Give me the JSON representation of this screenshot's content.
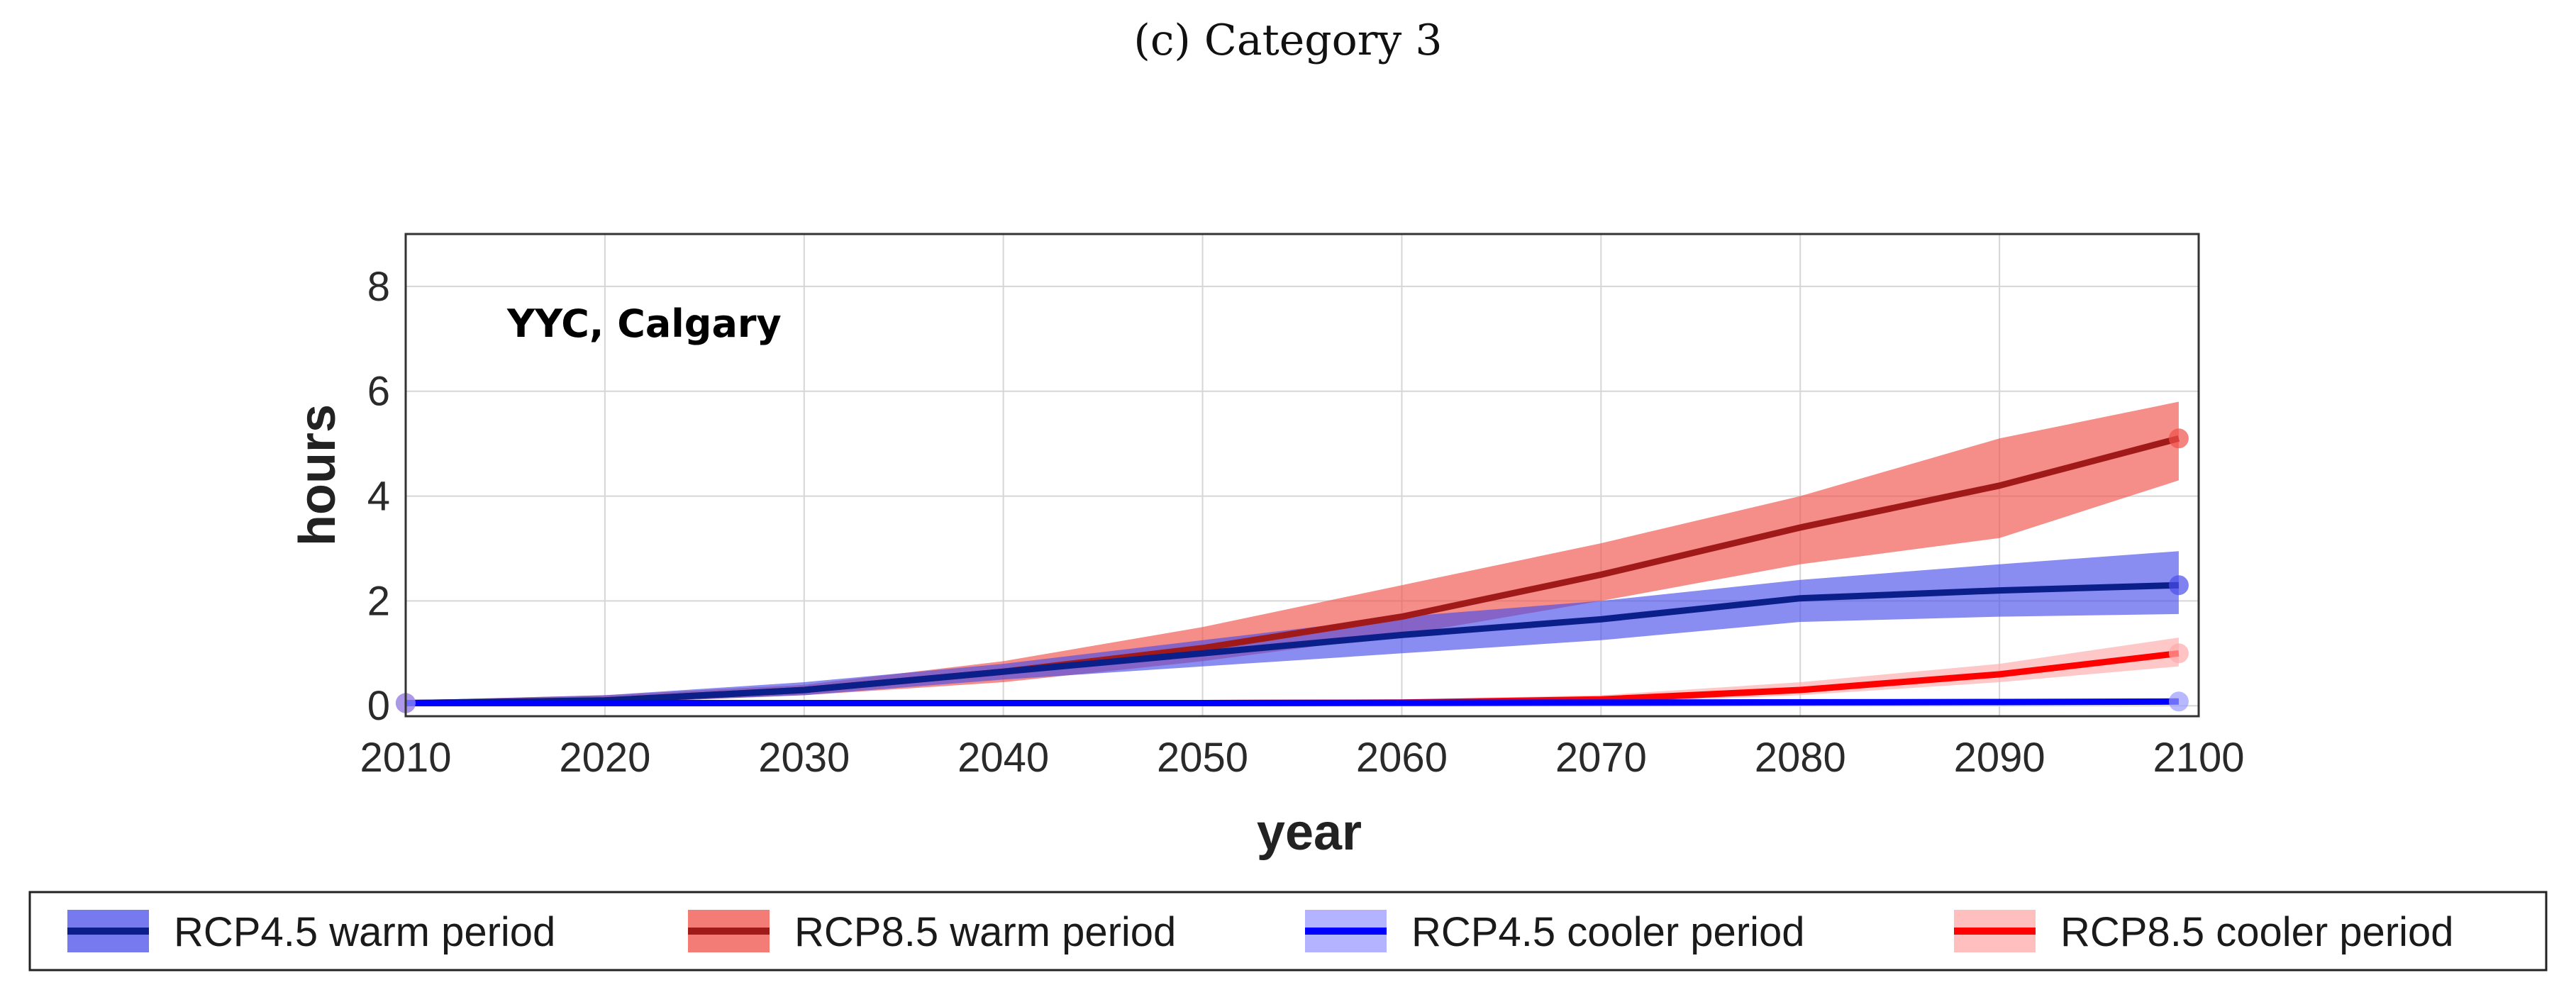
{
  "caption": "(c) Category 3",
  "chart_data": {
    "type": "line",
    "title": "",
    "annotation": "YYC, Calgary",
    "xlabel": "year",
    "ylabel": "hours",
    "xlim": [
      2010,
      2100
    ],
    "ylim": [
      -0.2,
      9
    ],
    "xticks": [
      2010,
      2020,
      2030,
      2040,
      2050,
      2060,
      2070,
      2080,
      2090,
      2100
    ],
    "yticks": [
      0,
      2,
      4,
      6,
      8
    ],
    "grid": true,
    "legend_position": "bottom",
    "series": [
      {
        "name": "RCP8.5 warm period",
        "line_color": "#a01a1a",
        "band_color": "#f0504a",
        "x": [
          2010,
          2020,
          2030,
          2040,
          2050,
          2060,
          2070,
          2080,
          2090,
          2099
        ],
        "values": [
          0.05,
          0.1,
          0.3,
          0.65,
          1.1,
          1.7,
          2.5,
          3.4,
          4.2,
          5.1
        ],
        "lower": [
          0.0,
          0.05,
          0.2,
          0.45,
          0.85,
          1.35,
          2.0,
          2.7,
          3.2,
          4.3
        ],
        "upper": [
          0.1,
          0.2,
          0.4,
          0.85,
          1.5,
          2.3,
          3.1,
          4.0,
          5.1,
          5.8
        ]
      },
      {
        "name": "RCP4.5 warm period",
        "line_color": "#0b1f8a",
        "band_color": "#4a4ee8",
        "x": [
          2010,
          2020,
          2030,
          2040,
          2050,
          2060,
          2070,
          2080,
          2090,
          2099
        ],
        "values": [
          0.05,
          0.1,
          0.3,
          0.65,
          1.0,
          1.35,
          1.65,
          2.05,
          2.2,
          2.3
        ],
        "lower": [
          0.0,
          0.05,
          0.2,
          0.5,
          0.75,
          1.0,
          1.25,
          1.6,
          1.7,
          1.75
        ],
        "upper": [
          0.1,
          0.2,
          0.45,
          0.8,
          1.25,
          1.7,
          2.0,
          2.4,
          2.7,
          2.95
        ]
      },
      {
        "name": "RCP8.5 cooler period",
        "line_color": "#ff0000",
        "band_color": "#ffaaaa",
        "x": [
          2010,
          2030,
          2050,
          2060,
          2070,
          2080,
          2090,
          2099
        ],
        "values": [
          0.05,
          0.05,
          0.05,
          0.06,
          0.12,
          0.3,
          0.6,
          1.0
        ],
        "lower": [
          0.0,
          0.0,
          0.0,
          0.02,
          0.05,
          0.2,
          0.45,
          0.75
        ],
        "upper": [
          0.1,
          0.1,
          0.1,
          0.12,
          0.2,
          0.45,
          0.8,
          1.3
        ]
      },
      {
        "name": "RCP4.5 cooler period",
        "line_color": "#0000ff",
        "band_color": "#9a9aff",
        "x": [
          2010,
          2030,
          2050,
          2070,
          2090,
          2099
        ],
        "values": [
          0.05,
          0.05,
          0.05,
          0.06,
          0.07,
          0.08
        ],
        "lower": [
          0.0,
          0.0,
          0.0,
          0.02,
          0.03,
          0.04
        ],
        "upper": [
          0.1,
          0.1,
          0.1,
          0.1,
          0.11,
          0.12
        ]
      }
    ],
    "legend": [
      {
        "label": "RCP4.5 warm period",
        "line_color": "#0b1f8a",
        "band_color": "#4a4ee8"
      },
      {
        "label": "RCP8.5 warm period",
        "line_color": "#a01a1a",
        "band_color": "#f0504a"
      },
      {
        "label": "RCP4.5 cooler period",
        "line_color": "#0000ff",
        "band_color": "#9a9aff"
      },
      {
        "label": "RCP8.5 cooler period",
        "line_color": "#ff0000",
        "band_color": "#ffaaaa"
      }
    ]
  }
}
